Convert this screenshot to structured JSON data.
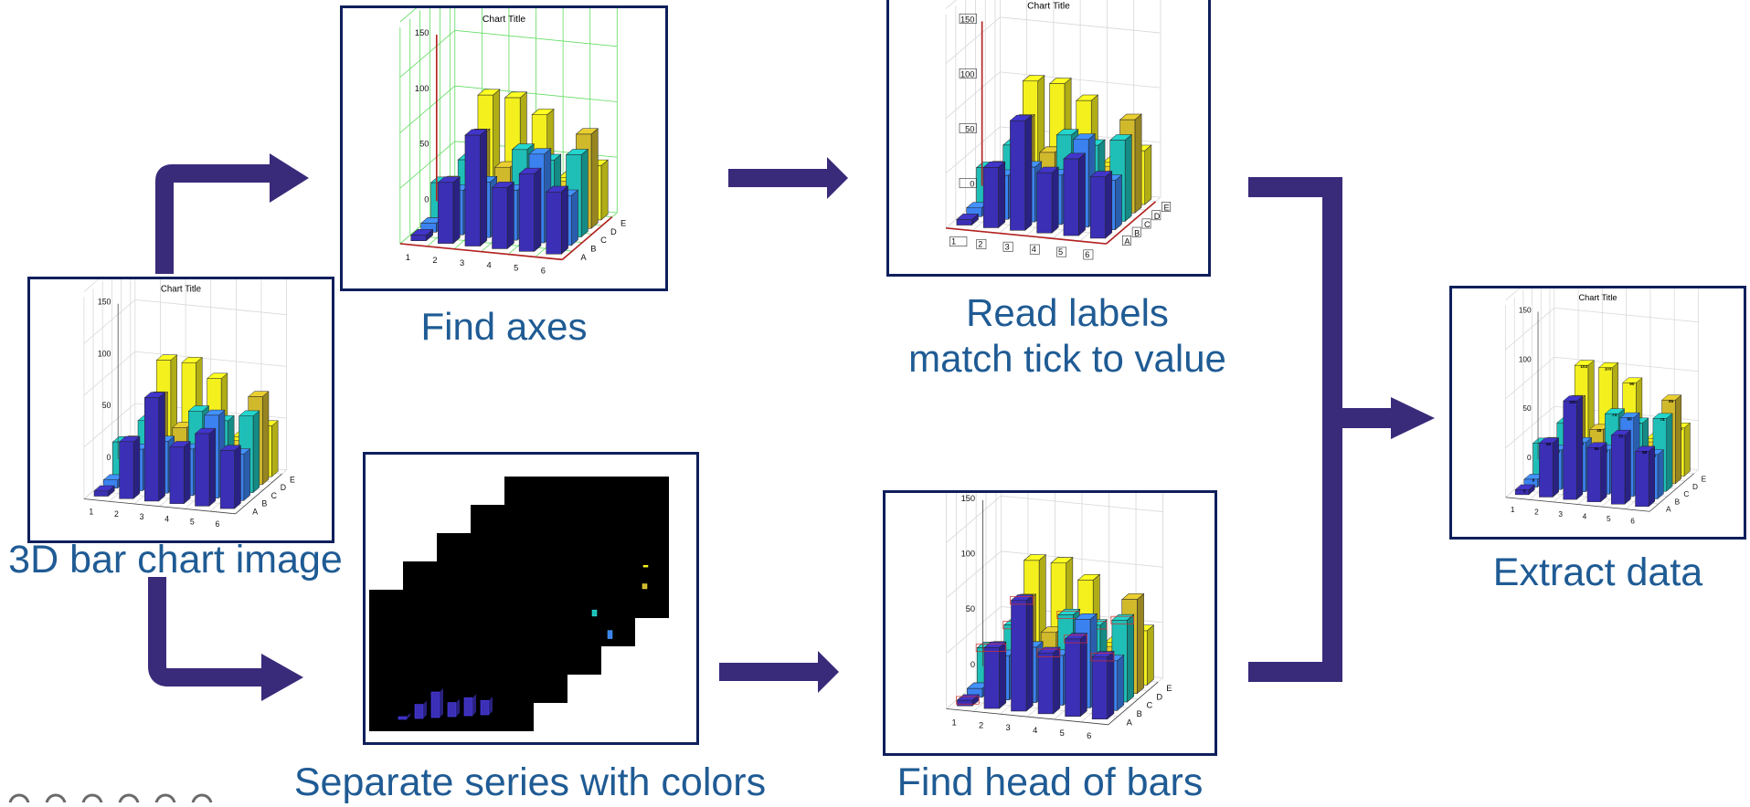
{
  "colors": {
    "arrow": "#3a2a7a",
    "frame": "#0f1f5c",
    "caption": "#1f5b94",
    "series": [
      "#3a2fb5",
      "#3b82f0",
      "#1fbfb8",
      "#d1b92c",
      "#f4f01e"
    ],
    "axis_highlight": "#b22222",
    "grid_highlight": "#66dd66",
    "head_marker": "#d03030"
  },
  "captions": {
    "input": "3D bar chart image",
    "find_axes": "Find axes",
    "read_labels_line1": "Read labels",
    "read_labels_line2": "match tick to value",
    "separate": "Separate series with colors",
    "find_heads": "Find head of bars",
    "extract": "Extract data"
  },
  "chart": {
    "title": "Chart Title",
    "x_ticks": [
      "1",
      "2",
      "3",
      "4",
      "5",
      "6"
    ],
    "y_ticks": [
      "A",
      "B",
      "C",
      "D",
      "E"
    ],
    "z_ticks": [
      "0",
      "50",
      "100",
      "150"
    ]
  },
  "chart_data": {
    "type": "bar3d",
    "title": "Chart Title",
    "categories": [
      "1",
      "2",
      "3",
      "4",
      "5",
      "6"
    ],
    "zlim": [
      0,
      150
    ],
    "series": [
      {
        "values": [
          5,
          55,
          100,
          55,
          70,
          56
        ]
      },
      {
        "values": [
          8,
          40,
          50,
          45,
          80,
          45
        ]
      },
      {
        "values": [
          37,
          60,
          20,
          74,
          67,
          74
        ]
      },
      {
        "values": [
          30,
          75,
          48,
          36,
          35,
          85
        ]
      },
      {
        "values": [
          17,
          103,
          103,
          90,
          36,
          49
        ]
      }
    ],
    "value_labels": [
      "5",
      "55",
      "100",
      "55",
      "70",
      "56",
      "8",
      "40",
      "50",
      "45",
      "80",
      "45",
      "37",
      "60",
      "20",
      "74",
      "67",
      "74",
      "30",
      "75",
      "48",
      "36",
      "35",
      "85",
      "17",
      "103",
      "103",
      "90",
      "36",
      "49"
    ]
  }
}
